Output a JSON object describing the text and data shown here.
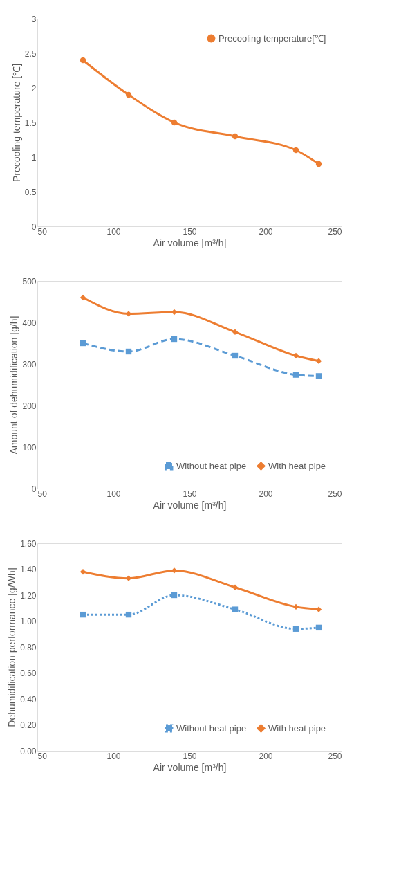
{
  "chart_data": [
    {
      "type": "line",
      "xlabel": "Air volume [m³/h]",
      "ylabel": "Precooling temperature [℃]",
      "x": [
        80,
        110,
        140,
        180,
        220,
        235
      ],
      "xlim": [
        50,
        250
      ],
      "xticks": [
        50,
        100,
        150,
        200,
        250
      ],
      "ylim": [
        0,
        3
      ],
      "yticks": [
        0,
        0.5,
        1,
        1.5,
        2,
        2.5,
        3
      ],
      "grid": false,
      "legend": "top right",
      "marker": "circle",
      "line_style": "solid",
      "series": [
        {
          "name": "Precooling temperature[℃]",
          "color": "#ed7d31",
          "values": [
            2.4,
            1.9,
            1.5,
            1.3,
            1.1,
            0.9
          ]
        }
      ]
    },
    {
      "type": "line",
      "xlabel": "Air volume [m³/h]",
      "ylabel": "Amount of dehumidification [g/h]",
      "x": [
        80,
        110,
        140,
        180,
        220,
        235
      ],
      "xlim": [
        50,
        250
      ],
      "xticks": [
        50,
        100,
        150,
        200,
        250
      ],
      "ylim": [
        0,
        500
      ],
      "yticks": [
        0,
        100,
        200,
        300,
        400,
        500
      ],
      "grid": false,
      "legend": "bottom right",
      "series": [
        {
          "name": "Without heat pipe",
          "color": "#5b9bd5",
          "marker": "square",
          "line_style": "dashed",
          "values": [
            350,
            330,
            360,
            320,
            274,
            271
          ]
        },
        {
          "name": "With heat pipe",
          "color": "#ed7d31",
          "marker": "diamond",
          "line_style": "solid",
          "values": [
            460,
            421,
            425,
            377,
            320,
            307
          ]
        }
      ]
    },
    {
      "type": "line",
      "xlabel": "Air volume [m³/h]",
      "ylabel": "Dehumidification performance [g/Wh]",
      "x": [
        80,
        110,
        140,
        180,
        220,
        235
      ],
      "xlim": [
        50,
        250
      ],
      "xticks": [
        50,
        100,
        150,
        200,
        250
      ],
      "ylim": [
        0,
        1.6
      ],
      "yticks": [
        {
          "value": 0,
          "label": "0.00"
        },
        {
          "value": 0.2,
          "label": "0.20"
        },
        {
          "value": 0.4,
          "label": "0.40"
        },
        {
          "value": 0.6,
          "label": "0.60"
        },
        {
          "value": 0.8,
          "label": "0.80"
        },
        {
          "value": 1.0,
          "label": "1.00"
        },
        {
          "value": 1.2,
          "label": "1.20"
        },
        {
          "value": 1.4,
          "label": "1.40"
        },
        {
          "value": 1.6,
          "label": "1.60"
        }
      ],
      "grid": false,
      "legend": "bottom right",
      "series": [
        {
          "name": "Without heat pipe",
          "color": "#5b9bd5",
          "marker": "square",
          "line_style": "dotted",
          "values": [
            1.05,
            1.05,
            1.2,
            1.09,
            0.94,
            0.95
          ]
        },
        {
          "name": "With heat pipe",
          "color": "#ed7d31",
          "marker": "diamond",
          "line_style": "solid",
          "values": [
            1.38,
            1.33,
            1.39,
            1.26,
            1.11,
            1.09
          ]
        }
      ]
    }
  ]
}
